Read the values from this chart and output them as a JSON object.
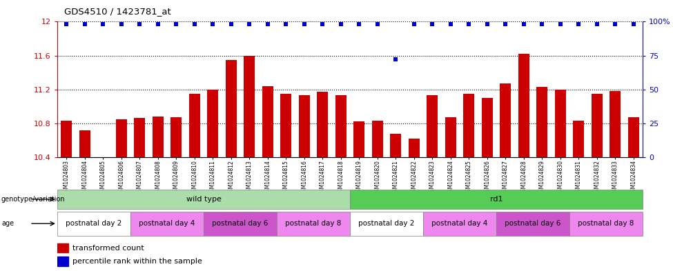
{
  "title": "GDS4510 / 1423781_at",
  "samples": [
    "GSM1024803",
    "GSM1024804",
    "GSM1024805",
    "GSM1024806",
    "GSM1024807",
    "GSM1024808",
    "GSM1024809",
    "GSM1024810",
    "GSM1024811",
    "GSM1024812",
    "GSM1024813",
    "GSM1024814",
    "GSM1024815",
    "GSM1024816",
    "GSM1024817",
    "GSM1024818",
    "GSM1024819",
    "GSM1024820",
    "GSM1024821",
    "GSM1024822",
    "GSM1024823",
    "GSM1024824",
    "GSM1024825",
    "GSM1024826",
    "GSM1024827",
    "GSM1024828",
    "GSM1024829",
    "GSM1024830",
    "GSM1024831",
    "GSM1024832",
    "GSM1024833",
    "GSM1024834"
  ],
  "bar_values": [
    10.83,
    10.72,
    10.4,
    10.85,
    10.86,
    10.88,
    10.87,
    11.15,
    11.2,
    11.55,
    11.6,
    11.24,
    11.15,
    11.13,
    11.17,
    11.13,
    10.82,
    10.83,
    10.68,
    10.62,
    11.13,
    10.87,
    11.15,
    11.1,
    11.27,
    11.62,
    11.23,
    11.2,
    10.83,
    11.15,
    11.18,
    10.87
  ],
  "percentile_values": [
    98,
    98,
    98,
    98,
    98,
    98,
    98,
    98,
    98,
    98,
    98,
    98,
    98,
    98,
    98,
    98,
    98,
    98,
    72,
    98,
    98,
    98,
    98,
    98,
    98,
    98,
    98,
    98,
    98,
    98,
    98,
    98
  ],
  "ylim_left": [
    10.4,
    12.0
  ],
  "ylim_right": [
    0,
    100
  ],
  "yticks_left": [
    10.4,
    10.8,
    11.2,
    11.6,
    12.0
  ],
  "ytick_labels_left": [
    "10.4",
    "10.8",
    "11.2",
    "11.6",
    "12"
  ],
  "yticks_right": [
    0,
    25,
    50,
    75,
    100
  ],
  "ytick_labels_right": [
    "0",
    "25",
    "50",
    "75",
    "100%"
  ],
  "bar_color": "#cc0000",
  "dot_color": "#0000cc",
  "genotype_groups": [
    {
      "label": "wild type",
      "start": 0,
      "end": 16,
      "color": "#aaddaa"
    },
    {
      "label": "rd1",
      "start": 16,
      "end": 32,
      "color": "#55cc55"
    }
  ],
  "age_color_list": [
    "#ffffff",
    "#ee88ee",
    "#cc55cc",
    "#ee88ee",
    "#ffffff",
    "#ee88ee",
    "#cc55cc",
    "#ee88ee"
  ],
  "age_groups": [
    {
      "label": "postnatal day 2",
      "start": 0,
      "end": 4
    },
    {
      "label": "postnatal day 4",
      "start": 4,
      "end": 8
    },
    {
      "label": "postnatal day 6",
      "start": 8,
      "end": 12
    },
    {
      "label": "postnatal day 8",
      "start": 12,
      "end": 16
    },
    {
      "label": "postnatal day 2",
      "start": 16,
      "end": 20
    },
    {
      "label": "postnatal day 4",
      "start": 20,
      "end": 24
    },
    {
      "label": "postnatal day 6",
      "start": 24,
      "end": 28
    },
    {
      "label": "postnatal day 8",
      "start": 28,
      "end": 32
    }
  ]
}
